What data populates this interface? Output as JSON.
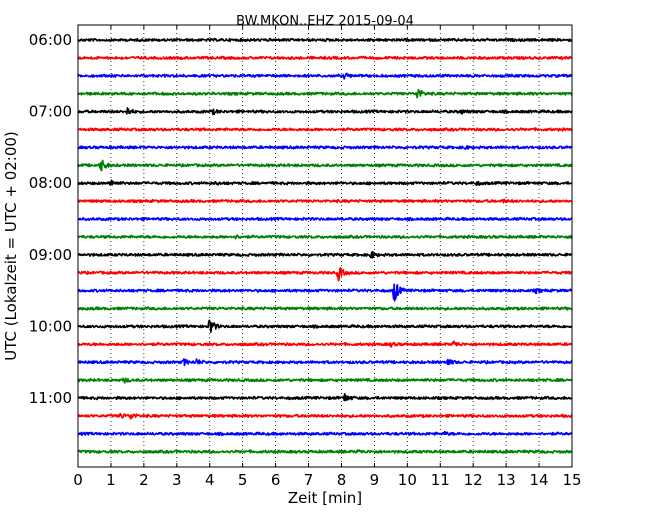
{
  "chart_data": {
    "type": "line",
    "title": "BW.MKON..EHZ 2015-09-04",
    "xlabel": "Zeit  [min]",
    "ylabel": "UTC (Lokalzeit = UTC + 02:00)",
    "xlim": [
      0,
      15
    ],
    "x_ticks": [
      "0",
      "1",
      "2",
      "3",
      "4",
      "5",
      "6",
      "7",
      "8",
      "9",
      "10",
      "11",
      "12",
      "13",
      "14",
      "15"
    ],
    "y_ticks": [
      "06:00",
      "07:00",
      "08:00",
      "09:00",
      "10:00",
      "11:00"
    ],
    "grid": "vertical dotted",
    "colors": [
      "#000000",
      "#ff0000",
      "#0000ff",
      "#008000"
    ],
    "traces": [
      {
        "start": "06:00",
        "color": "#000000",
        "events": []
      },
      {
        "start": "06:15",
        "color": "#ff0000",
        "events": []
      },
      {
        "start": "06:30",
        "color": "#0000ff",
        "events": [
          {
            "t": 8.1,
            "amp": 0.3
          }
        ]
      },
      {
        "start": "06:45",
        "color": "#008000",
        "events": [
          {
            "t": 10.3,
            "amp": 0.75
          }
        ]
      },
      {
        "start": "07:00",
        "color": "#000000",
        "events": [
          {
            "t": 1.5,
            "amp": 0.45
          },
          {
            "t": 4.1,
            "amp": 0.2
          },
          {
            "t": 11.6,
            "amp": 0.25
          }
        ]
      },
      {
        "start": "07:15",
        "color": "#ff0000",
        "events": []
      },
      {
        "start": "07:30",
        "color": "#0000ff",
        "events": [
          {
            "t": 11.7,
            "amp": 0.2
          }
        ]
      },
      {
        "start": "07:45",
        "color": "#008000",
        "events": [
          {
            "t": 0.7,
            "amp": 0.8
          }
        ]
      },
      {
        "start": "08:00",
        "color": "#000000",
        "events": [
          {
            "t": 1.0,
            "amp": 0.45
          },
          {
            "t": 4.2,
            "amp": 0.15
          },
          {
            "t": 12.1,
            "amp": 0.15
          }
        ]
      },
      {
        "start": "08:15",
        "color": "#ff0000",
        "events": [
          {
            "t": 12.9,
            "amp": 0.15
          }
        ]
      },
      {
        "start": "08:30",
        "color": "#0000ff",
        "events": []
      },
      {
        "start": "08:45",
        "color": "#008000",
        "events": [
          {
            "t": 4.8,
            "amp": 0.15
          }
        ]
      },
      {
        "start": "09:00",
        "color": "#000000",
        "events": [
          {
            "t": 8.9,
            "amp": 0.4
          }
        ]
      },
      {
        "start": "09:15",
        "color": "#ff0000",
        "events": [
          {
            "t": 7.9,
            "amp": 0.9
          }
        ]
      },
      {
        "start": "09:30",
        "color": "#0000ff",
        "events": [
          {
            "t": 9.6,
            "amp": 1.5
          },
          {
            "t": 13.9,
            "amp": 0.2
          }
        ]
      },
      {
        "start": "09:45",
        "color": "#008000",
        "events": []
      },
      {
        "start": "10:00",
        "color": "#000000",
        "events": [
          {
            "t": 4.0,
            "amp": 1.1
          }
        ]
      },
      {
        "start": "10:15",
        "color": "#ff0000",
        "events": [
          {
            "t": 9.5,
            "amp": 0.2
          },
          {
            "t": 11.4,
            "amp": 0.4
          }
        ]
      },
      {
        "start": "10:30",
        "color": "#0000ff",
        "events": [
          {
            "t": 3.2,
            "amp": 0.35
          },
          {
            "t": 3.6,
            "amp": 0.3
          },
          {
            "t": 11.2,
            "amp": 0.45
          }
        ]
      },
      {
        "start": "10:45",
        "color": "#008000",
        "events": [
          {
            "t": 1.4,
            "amp": 0.25
          }
        ]
      },
      {
        "start": "11:00",
        "color": "#000000",
        "events": [
          {
            "t": 8.1,
            "amp": 0.45
          }
        ]
      },
      {
        "start": "11:15",
        "color": "#ff0000",
        "events": [
          {
            "t": 1.3,
            "amp": 0.3
          },
          {
            "t": 1.6,
            "amp": 0.35
          }
        ]
      },
      {
        "start": "11:30",
        "color": "#0000ff",
        "events": [
          {
            "t": 11.1,
            "amp": 0.2
          }
        ]
      },
      {
        "start": "11:45",
        "color": "#008000",
        "events": [
          {
            "t": 8.5,
            "amp": 0.15
          }
        ]
      }
    ]
  }
}
